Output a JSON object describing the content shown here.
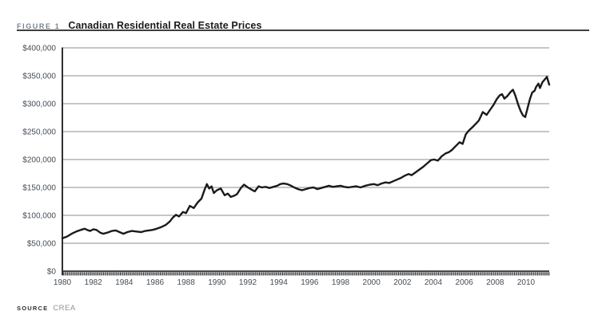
{
  "figure": {
    "label": "FIGURE 1",
    "title": "Canadian Residential Real Estate Prices"
  },
  "source": {
    "label": "SOURCE",
    "value": "CREA"
  },
  "colors": {
    "figure_label": "#76828f",
    "title": "#1b1b1b",
    "title_rule": "#3f3f3f",
    "grid": "#8c8c8c",
    "axis": "#2f2f2f",
    "tick_label": "#454e58",
    "line": "#1a1a1a",
    "background": "#ffffff"
  },
  "chart_data": {
    "type": "line",
    "title": "Canadian Residential Real Estate Prices",
    "xlabel": "",
    "ylabel": "",
    "xlim": [
      1980,
      2011.5
    ],
    "ylim": [
      0,
      400000
    ],
    "grid": true,
    "legend": false,
    "y_tick_values": [
      0,
      50000,
      100000,
      150000,
      200000,
      250000,
      300000,
      350000,
      400000
    ],
    "y_tick_labels": [
      "$0",
      "$50,000",
      "$100,000",
      "$150,000",
      "$200,000",
      "$250,000",
      "$300,000",
      "$350,000",
      "$400,000"
    ],
    "x_tick_values": [
      1980,
      1982,
      1984,
      1986,
      1988,
      1990,
      1992,
      1994,
      1996,
      1998,
      2000,
      2002,
      2004,
      2006,
      2008,
      2010
    ],
    "x_tick_labels": [
      "1980",
      "1982",
      "1984",
      "1986",
      "1988",
      "1990",
      "1992",
      "1994",
      "1996",
      "1998",
      "2000",
      "2002",
      "2004",
      "2006",
      "2008",
      "2010"
    ],
    "minor_x_ticks_per_year": 12,
    "points": [
      [
        1980.0,
        59000
      ],
      [
        1980.3,
        62000
      ],
      [
        1980.6,
        67000
      ],
      [
        1980.9,
        71000
      ],
      [
        1981.2,
        74000
      ],
      [
        1981.45,
        76000
      ],
      [
        1981.6,
        74000
      ],
      [
        1981.8,
        72000
      ],
      [
        1982.0,
        75000
      ],
      [
        1982.2,
        74000
      ],
      [
        1982.45,
        69000
      ],
      [
        1982.65,
        67000
      ],
      [
        1982.9,
        69000
      ],
      [
        1983.2,
        72000
      ],
      [
        1983.45,
        73000
      ],
      [
        1983.7,
        70000
      ],
      [
        1983.95,
        67000
      ],
      [
        1984.2,
        70000
      ],
      [
        1984.5,
        72000
      ],
      [
        1984.8,
        71000
      ],
      [
        1985.1,
        70000
      ],
      [
        1985.35,
        72000
      ],
      [
        1985.6,
        73000
      ],
      [
        1985.85,
        74000
      ],
      [
        1986.1,
        76000
      ],
      [
        1986.4,
        79000
      ],
      [
        1986.7,
        83000
      ],
      [
        1986.95,
        89000
      ],
      [
        1987.15,
        96000
      ],
      [
        1987.35,
        101000
      ],
      [
        1987.55,
        98000
      ],
      [
        1987.8,
        106000
      ],
      [
        1988.0,
        104000
      ],
      [
        1988.25,
        117000
      ],
      [
        1988.5,
        113000
      ],
      [
        1988.75,
        123000
      ],
      [
        1989.0,
        130000
      ],
      [
        1989.2,
        146000
      ],
      [
        1989.35,
        156000
      ],
      [
        1989.5,
        148000
      ],
      [
        1989.65,
        152000
      ],
      [
        1989.8,
        140000
      ],
      [
        1990.0,
        145000
      ],
      [
        1990.25,
        148000
      ],
      [
        1990.5,
        136000
      ],
      [
        1990.7,
        139000
      ],
      [
        1990.9,
        133000
      ],
      [
        1991.1,
        135000
      ],
      [
        1991.3,
        138000
      ],
      [
        1991.55,
        149000
      ],
      [
        1991.75,
        155000
      ],
      [
        1992.0,
        150000
      ],
      [
        1992.25,
        146000
      ],
      [
        1992.45,
        143000
      ],
      [
        1992.7,
        152000
      ],
      [
        1992.9,
        150000
      ],
      [
        1993.15,
        151000
      ],
      [
        1993.4,
        149000
      ],
      [
        1993.65,
        151000
      ],
      [
        1993.9,
        153000
      ],
      [
        1994.1,
        156000
      ],
      [
        1994.3,
        157000
      ],
      [
        1994.55,
        156000
      ],
      [
        1994.8,
        153000
      ],
      [
        1995.0,
        150000
      ],
      [
        1995.25,
        147000
      ],
      [
        1995.5,
        145000
      ],
      [
        1995.75,
        147000
      ],
      [
        1996.0,
        149000
      ],
      [
        1996.25,
        150000
      ],
      [
        1996.5,
        147000
      ],
      [
        1996.75,
        149000
      ],
      [
        1997.0,
        151000
      ],
      [
        1997.25,
        153000
      ],
      [
        1997.5,
        151000
      ],
      [
        1997.75,
        152000
      ],
      [
        1998.0,
        153000
      ],
      [
        1998.25,
        151000
      ],
      [
        1998.5,
        150000
      ],
      [
        1998.75,
        151000
      ],
      [
        1999.0,
        152000
      ],
      [
        1999.3,
        150000
      ],
      [
        1999.6,
        153000
      ],
      [
        1999.9,
        155000
      ],
      [
        2000.15,
        156000
      ],
      [
        2000.4,
        154000
      ],
      [
        2000.65,
        157000
      ],
      [
        2000.9,
        159000
      ],
      [
        2001.15,
        158000
      ],
      [
        2001.4,
        161000
      ],
      [
        2001.65,
        164000
      ],
      [
        2001.9,
        167000
      ],
      [
        2002.15,
        171000
      ],
      [
        2002.4,
        174000
      ],
      [
        2002.6,
        172000
      ],
      [
        2002.85,
        177000
      ],
      [
        2003.1,
        182000
      ],
      [
        2003.35,
        187000
      ],
      [
        2003.6,
        193000
      ],
      [
        2003.85,
        199000
      ],
      [
        2004.05,
        200000
      ],
      [
        2004.3,
        198000
      ],
      [
        2004.55,
        206000
      ],
      [
        2004.8,
        211000
      ],
      [
        2005.0,
        213000
      ],
      [
        2005.2,
        217000
      ],
      [
        2005.45,
        224000
      ],
      [
        2005.7,
        231000
      ],
      [
        2005.9,
        228000
      ],
      [
        2006.1,
        245000
      ],
      [
        2006.3,
        252000
      ],
      [
        2006.5,
        257000
      ],
      [
        2006.75,
        264000
      ],
      [
        2006.95,
        270000
      ],
      [
        2007.2,
        285000
      ],
      [
        2007.45,
        280000
      ],
      [
        2007.7,
        290000
      ],
      [
        2007.9,
        298000
      ],
      [
        2008.1,
        308000
      ],
      [
        2008.3,
        315000
      ],
      [
        2008.45,
        317000
      ],
      [
        2008.6,
        309000
      ],
      [
        2008.8,
        314000
      ],
      [
        2009.0,
        321000
      ],
      [
        2009.15,
        325000
      ],
      [
        2009.3,
        315000
      ],
      [
        2009.5,
        298000
      ],
      [
        2009.65,
        287000
      ],
      [
        2009.8,
        279000
      ],
      [
        2009.95,
        276000
      ],
      [
        2010.1,
        292000
      ],
      [
        2010.25,
        308000
      ],
      [
        2010.4,
        320000
      ],
      [
        2010.55,
        323000
      ],
      [
        2010.65,
        330000
      ],
      [
        2010.8,
        336000
      ],
      [
        2010.9,
        328000
      ],
      [
        2011.05,
        338000
      ],
      [
        2011.2,
        343000
      ],
      [
        2011.35,
        348000
      ],
      [
        2011.5,
        334000
      ]
    ]
  }
}
